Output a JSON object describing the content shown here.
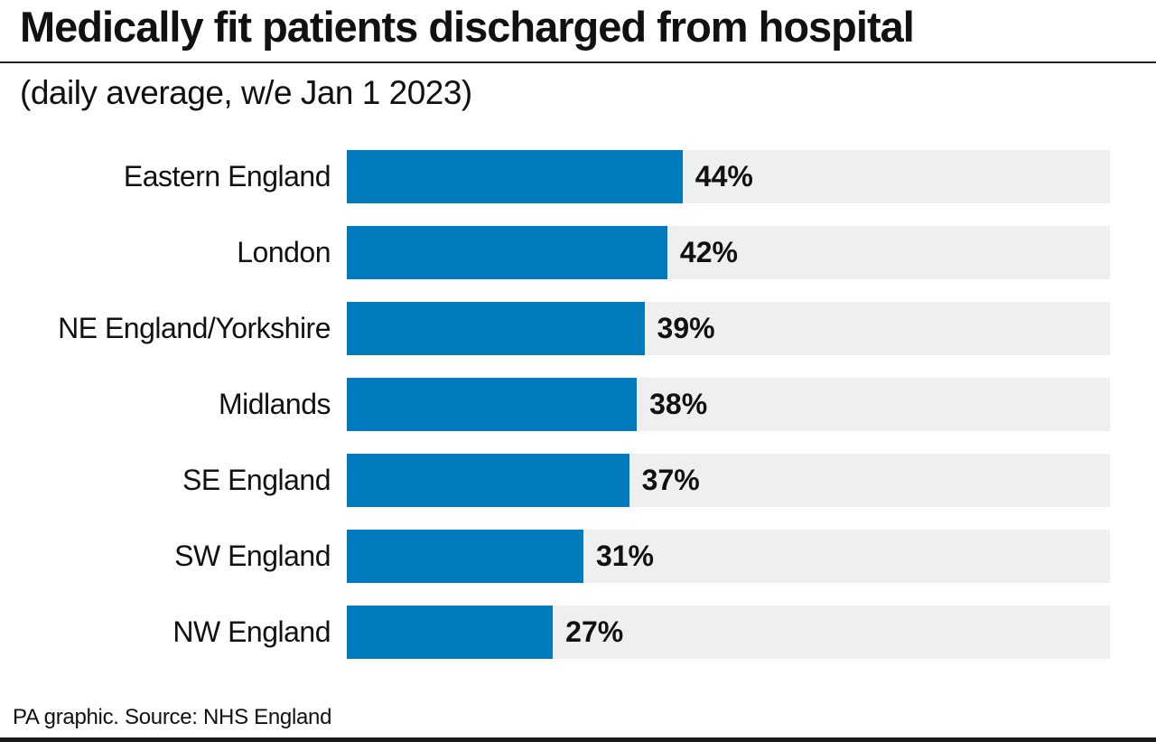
{
  "chart_data": {
    "type": "bar",
    "orientation": "horizontal",
    "title": "Medically fit patients discharged from hospital",
    "subtitle": "(daily average, w/e Jan 1 2023)",
    "categories": [
      "Eastern England",
      "London",
      "NE England/Yorkshire",
      "Midlands",
      "SE England",
      "SW England",
      "NW England"
    ],
    "values": [
      44,
      42,
      39,
      38,
      37,
      31,
      27
    ],
    "value_labels": [
      "44%",
      "42%",
      "39%",
      "38%",
      "37%",
      "31%",
      "27%"
    ],
    "xlim": [
      0,
      100
    ],
    "unit": "%",
    "grid": false,
    "legend": "none",
    "colors": {
      "bar": "#007bbd",
      "track": "#efefef"
    }
  },
  "footer": "PA graphic. Source: NHS England"
}
